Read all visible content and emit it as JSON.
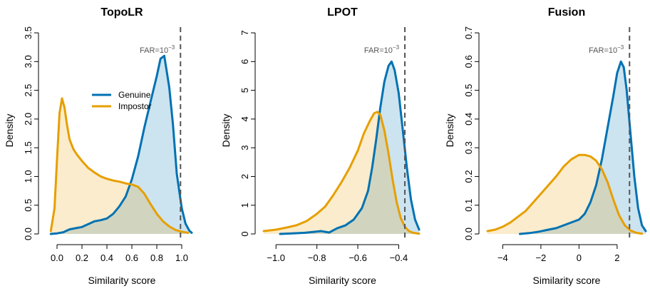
{
  "colors": {
    "genuine": "#0072b2",
    "genuine_fill": "rgba(0,114,178,0.2)",
    "impostor": "#e69f00",
    "impostor_fill": "rgba(230,159,0,0.2)",
    "threshold": "#555555"
  },
  "chart_data": [
    {
      "type": "area",
      "title": "TopoLR",
      "xlabel": "Similarity score",
      "ylabel": "Density",
      "xlim": [
        -0.08,
        1.12
      ],
      "ylim": [
        0,
        3.6
      ],
      "xticks": [
        0.0,
        0.2,
        0.4,
        0.6,
        0.8,
        1.0
      ],
      "xtick_labels": [
        "0.0",
        "0.2",
        "0.4",
        "0.6",
        "0.8",
        "1.0"
      ],
      "yticks": [
        0.0,
        0.5,
        1.0,
        1.5,
        2.0,
        2.5,
        3.0,
        3.5
      ],
      "ytick_labels": [
        "0.0",
        "0.5",
        "1.0",
        "1.5",
        "2.0",
        "2.5",
        "3.0",
        "3.5"
      ],
      "threshold": 0.99,
      "annotation": {
        "base": "FAR=10",
        "exp": "−3"
      },
      "legend": {
        "position": "middle-right",
        "entries": [
          "Genuine",
          "Impostor"
        ]
      },
      "series": [
        {
          "name": "Genuine",
          "color": "genuine",
          "fill": "genuine_fill",
          "x": [
            -0.05,
            0.0,
            0.05,
            0.1,
            0.15,
            0.2,
            0.25,
            0.3,
            0.35,
            0.4,
            0.45,
            0.5,
            0.55,
            0.6,
            0.65,
            0.7,
            0.75,
            0.8,
            0.83,
            0.86,
            0.9,
            0.93,
            0.96,
            1.0,
            1.03,
            1.06,
            1.08
          ],
          "y": [
            0.0,
            0.01,
            0.03,
            0.08,
            0.1,
            0.12,
            0.17,
            0.22,
            0.24,
            0.27,
            0.35,
            0.48,
            0.65,
            0.95,
            1.35,
            1.85,
            2.3,
            2.75,
            3.05,
            3.1,
            2.55,
            1.9,
            1.05,
            0.45,
            0.18,
            0.06,
            0.02
          ]
        },
        {
          "name": "Impostor",
          "color": "impostor",
          "fill": "impostor_fill",
          "x": [
            -0.05,
            -0.02,
            0.0,
            0.02,
            0.04,
            0.06,
            0.08,
            0.1,
            0.13,
            0.16,
            0.2,
            0.25,
            0.3,
            0.35,
            0.4,
            0.45,
            0.5,
            0.55,
            0.6,
            0.65,
            0.7,
            0.75,
            0.8,
            0.85,
            0.9,
            0.95,
            1.0,
            1.05
          ],
          "y": [
            0.05,
            0.45,
            1.3,
            2.1,
            2.36,
            2.2,
            1.9,
            1.65,
            1.48,
            1.38,
            1.27,
            1.15,
            1.07,
            1.0,
            0.96,
            0.93,
            0.91,
            0.88,
            0.86,
            0.82,
            0.7,
            0.52,
            0.35,
            0.22,
            0.13,
            0.07,
            0.04,
            0.02
          ]
        }
      ]
    },
    {
      "type": "area",
      "title": "LPOT",
      "xlabel": "Similarity score",
      "ylabel": "Density",
      "xlim": [
        -1.06,
        -0.29
      ],
      "ylim": [
        0,
        7.2
      ],
      "xticks": [
        -1.0,
        -0.8,
        -0.6,
        -0.4
      ],
      "xtick_labels": [
        "−1.0",
        "−0.8",
        "−0.6",
        "−0.4"
      ],
      "yticks": [
        0,
        1,
        2,
        3,
        4,
        5,
        6,
        7
      ],
      "ytick_labels": [
        "0",
        "1",
        "2",
        "3",
        "4",
        "5",
        "6",
        "7"
      ],
      "threshold": -0.37,
      "annotation": {
        "base": "FAR=10",
        "exp": "−3"
      },
      "series": [
        {
          "name": "Genuine",
          "color": "genuine",
          "fill": "genuine_fill",
          "x": [
            -0.98,
            -0.92,
            -0.86,
            -0.82,
            -0.78,
            -0.74,
            -0.7,
            -0.66,
            -0.62,
            -0.58,
            -0.55,
            -0.53,
            -0.51,
            -0.49,
            -0.47,
            -0.45,
            -0.435,
            -0.42,
            -0.4,
            -0.38,
            -0.36,
            -0.34,
            -0.32,
            -0.3
          ],
          "y": [
            0.0,
            0.02,
            0.04,
            0.07,
            0.1,
            0.05,
            0.2,
            0.3,
            0.5,
            0.9,
            1.5,
            2.3,
            3.3,
            4.4,
            5.3,
            5.85,
            6.0,
            5.7,
            4.9,
            3.6,
            2.3,
            1.2,
            0.5,
            0.15
          ]
        },
        {
          "name": "Impostor",
          "color": "impostor",
          "fill": "impostor_fill",
          "x": [
            -1.06,
            -1.0,
            -0.95,
            -0.9,
            -0.85,
            -0.8,
            -0.76,
            -0.72,
            -0.68,
            -0.64,
            -0.6,
            -0.57,
            -0.54,
            -0.52,
            -0.505,
            -0.49,
            -0.47,
            -0.45,
            -0.43,
            -0.41,
            -0.39,
            -0.37,
            -0.35,
            -0.33,
            -0.3
          ],
          "y": [
            0.1,
            0.15,
            0.22,
            0.3,
            0.45,
            0.7,
            0.95,
            1.35,
            1.8,
            2.3,
            2.9,
            3.5,
            3.95,
            4.2,
            4.25,
            4.15,
            3.6,
            2.8,
            1.9,
            1.1,
            0.55,
            0.25,
            0.1,
            0.04,
            0.01
          ]
        }
      ]
    },
    {
      "type": "area",
      "title": "Fusion",
      "xlabel": "Similarity score",
      "ylabel": "Density",
      "xlim": [
        -4.8,
        3.5
      ],
      "ylim": [
        0,
        0.72
      ],
      "xticks": [
        -4,
        -2,
        0,
        2
      ],
      "xtick_labels": [
        "−4",
        "−2",
        "0",
        "2"
      ],
      "yticks": [
        0.0,
        0.1,
        0.2,
        0.3,
        0.4,
        0.5,
        0.6,
        0.7
      ],
      "ytick_labels": [
        "0.0",
        "0.1",
        "0.2",
        "0.3",
        "0.4",
        "0.5",
        "0.6",
        "0.7"
      ],
      "threshold": 2.65,
      "annotation": {
        "base": "FAR=10",
        "exp": "−3"
      },
      "series": [
        {
          "name": "Genuine",
          "color": "genuine",
          "fill": "genuine_fill",
          "x": [
            -3.1,
            -2.6,
            -2.1,
            -1.6,
            -1.2,
            -0.8,
            -0.4,
            0.0,
            0.3,
            0.6,
            0.9,
            1.2,
            1.5,
            1.8,
            2.0,
            2.2,
            2.35,
            2.5,
            2.7,
            2.9,
            3.1,
            3.3,
            3.5
          ],
          "y": [
            0.0,
            0.003,
            0.008,
            0.015,
            0.02,
            0.03,
            0.04,
            0.05,
            0.07,
            0.11,
            0.17,
            0.26,
            0.37,
            0.48,
            0.56,
            0.6,
            0.58,
            0.5,
            0.35,
            0.2,
            0.09,
            0.03,
            0.01
          ]
        },
        {
          "name": "Impostor",
          "color": "impostor",
          "fill": "impostor_fill",
          "x": [
            -4.8,
            -4.4,
            -4.0,
            -3.6,
            -3.2,
            -2.8,
            -2.4,
            -2.0,
            -1.6,
            -1.2,
            -0.8,
            -0.4,
            0.0,
            0.3,
            0.6,
            0.9,
            1.2,
            1.5,
            1.8,
            2.1,
            2.4,
            2.7,
            3.0,
            3.3
          ],
          "y": [
            0.01,
            0.015,
            0.025,
            0.04,
            0.06,
            0.08,
            0.11,
            0.14,
            0.17,
            0.2,
            0.235,
            0.26,
            0.275,
            0.275,
            0.27,
            0.255,
            0.225,
            0.18,
            0.12,
            0.065,
            0.03,
            0.012,
            0.004,
            0.001
          ]
        }
      ]
    }
  ]
}
